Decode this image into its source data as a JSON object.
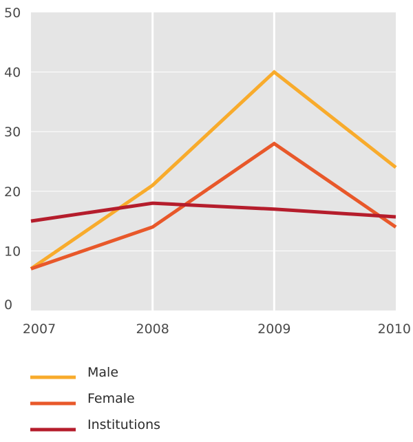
{
  "chart_data": {
    "type": "line",
    "x": [
      "2007",
      "2008",
      "2009",
      "2010"
    ],
    "ylim": [
      0,
      50
    ],
    "y_ticks": [
      "0",
      "10",
      "20",
      "30",
      "40",
      "50"
    ],
    "grid": "vertical-and-horizontal",
    "legend_position": "bottom",
    "series": [
      {
        "name": "Male",
        "values": [
          7,
          21,
          40,
          24
        ],
        "color": "#f8ab2c"
      },
      {
        "name": "Female",
        "values": [
          7,
          14,
          28,
          14
        ],
        "color": "#e8582a"
      },
      {
        "name": "Institutions",
        "values": [
          15,
          18,
          17,
          15.7
        ],
        "color": "#b51d2c"
      }
    ],
    "plot_background": "#e5e5e5",
    "grid_color": "#ffffff"
  }
}
